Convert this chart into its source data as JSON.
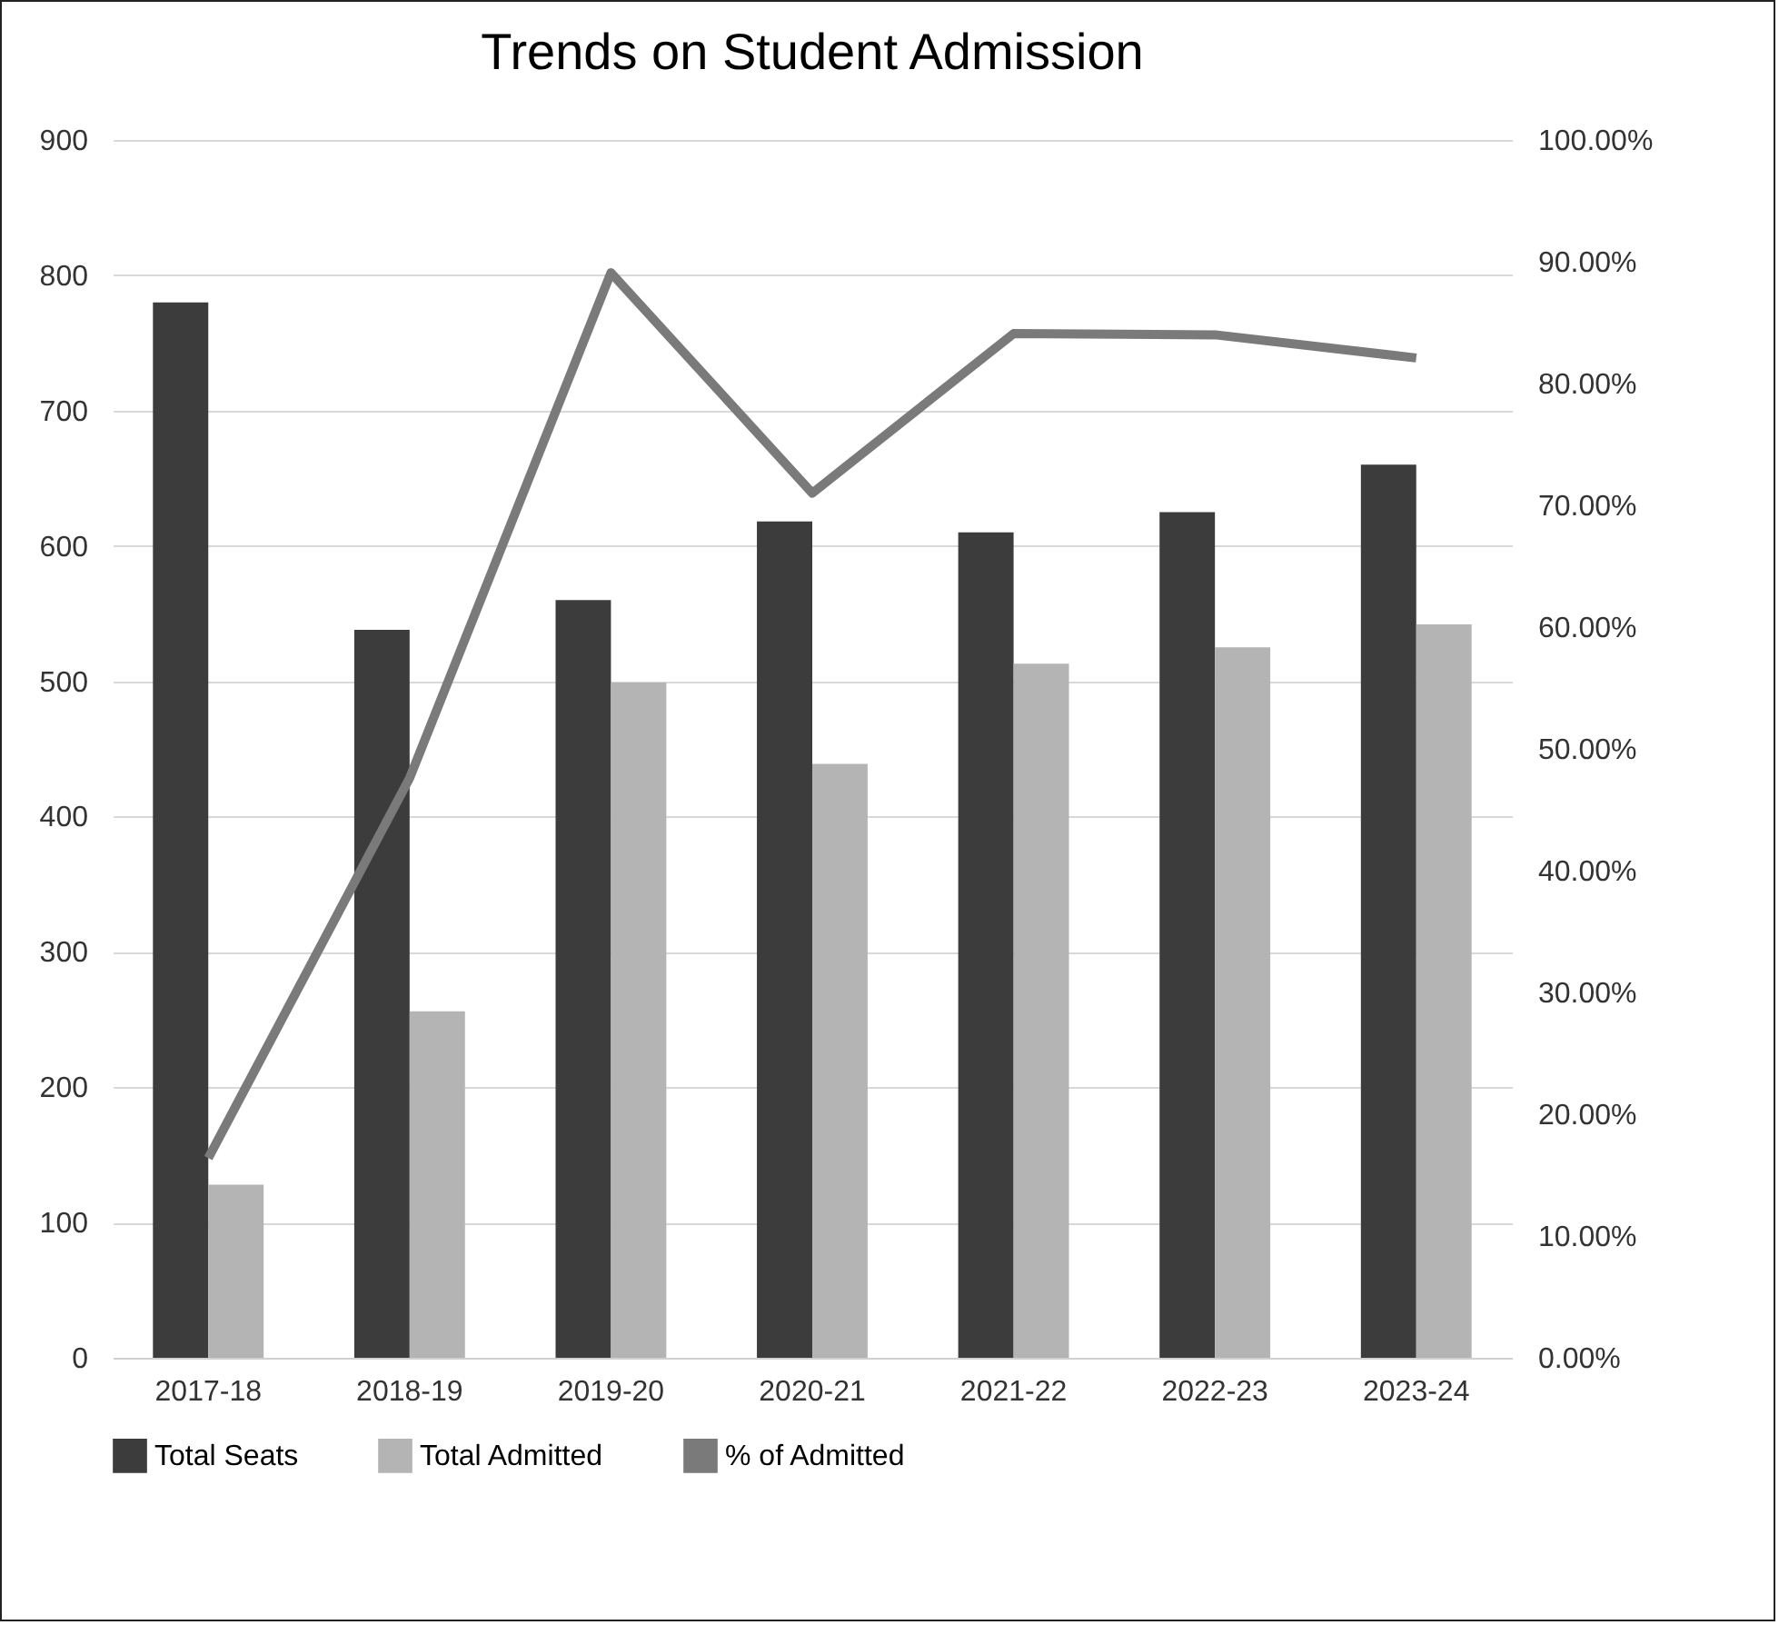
{
  "chart_data": {
    "type": "bar",
    "title": "Trends on Student Admission",
    "categories": [
      "2017-18",
      "2018-19",
      "2019-20",
      "2020-21",
      "2021-22",
      "2022-23",
      "2023-24"
    ],
    "series": [
      {
        "name": "Total Seats",
        "color": "#3c3c3c",
        "values": [
          780,
          538,
          560,
          618,
          610,
          625,
          660
        ]
      },
      {
        "name": "Total Admitted",
        "color": "#b4b4b4",
        "values": [
          128,
          256,
          499,
          439,
          513,
          525,
          542
        ]
      },
      {
        "name": "% of Admitted",
        "color": "#7a7a7a",
        "type": "line",
        "axis": "y2",
        "values": [
          16.4,
          47.6,
          89.1,
          71.0,
          84.1,
          84.0,
          82.1
        ]
      }
    ],
    "ylim": [
      0,
      900
    ],
    "yticks": [
      0,
      100,
      200,
      300,
      400,
      500,
      600,
      700,
      800,
      900
    ],
    "y2lim": [
      0,
      100
    ],
    "y2ticks": [
      {
        "value": 0,
        "label": "0.00%"
      },
      {
        "value": 10,
        "label": "10.00%"
      },
      {
        "value": 20,
        "label": "20.00%"
      },
      {
        "value": 30,
        "label": "30.00%"
      },
      {
        "value": 40,
        "label": "40.00%"
      },
      {
        "value": 50,
        "label": "50.00%"
      },
      {
        "value": 60,
        "label": "60.00%"
      },
      {
        "value": 70,
        "label": "70.00%"
      },
      {
        "value": 80,
        "label": "80.00%"
      },
      {
        "value": 90,
        "label": "90.00%"
      },
      {
        "value": 100,
        "label": "100.00%"
      }
    ],
    "grid": "y",
    "legend": "bottom"
  }
}
